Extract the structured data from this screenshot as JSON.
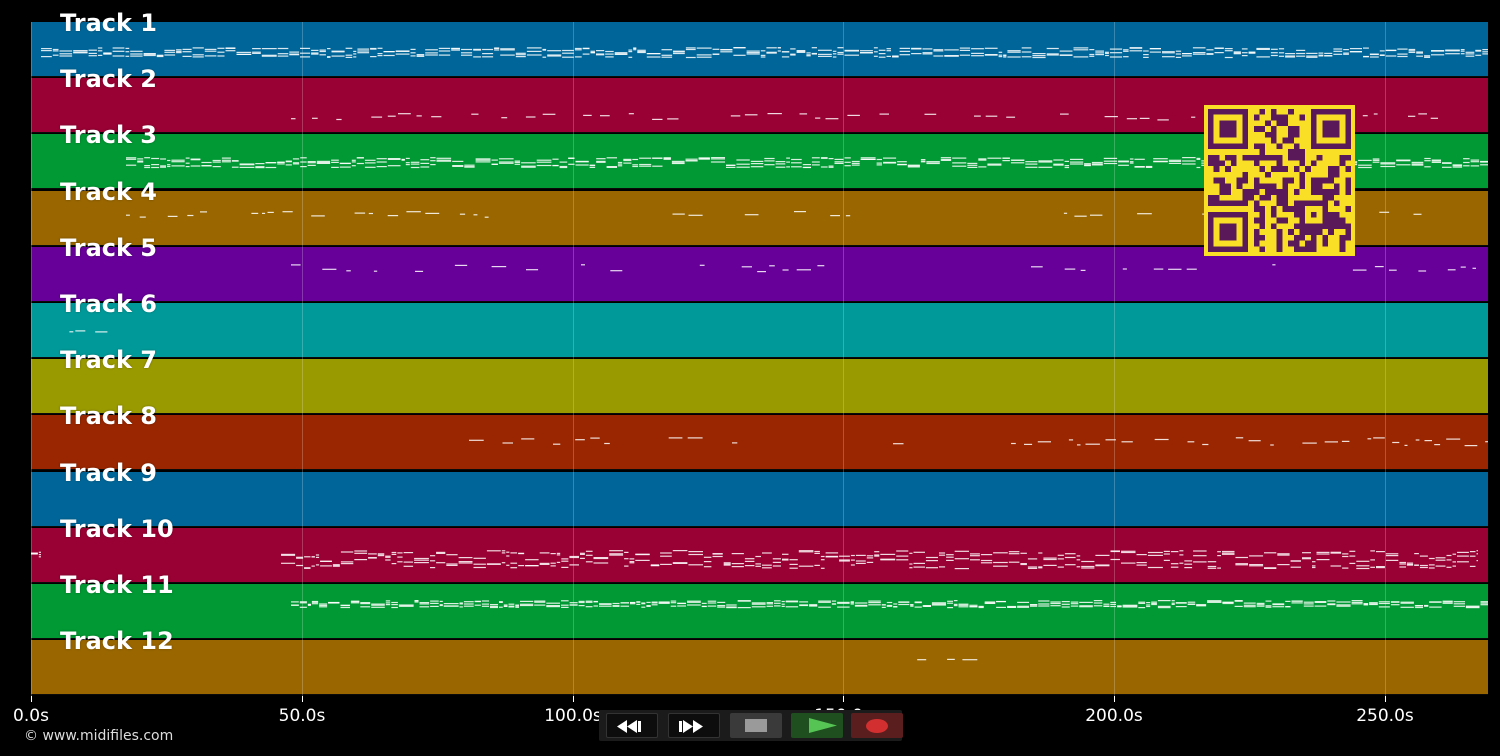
{
  "tracks": [
    {
      "label": "Track 1",
      "color": "#006699"
    },
    {
      "label": "Track 2",
      "color": "#990033"
    },
    {
      "label": "Track 3",
      "color": "#009933"
    },
    {
      "label": "Track 4",
      "color": "#996600"
    },
    {
      "label": "Track 5",
      "color": "#660099"
    },
    {
      "label": "Track 6",
      "color": "#009999"
    },
    {
      "label": "Track 7",
      "color": "#999900"
    },
    {
      "label": "Track 8",
      "color": "#992600"
    },
    {
      "label": "Track 9",
      "color": "#006699"
    },
    {
      "label": "Track 10",
      "color": "#990033"
    },
    {
      "label": "Track 11",
      "color": "#009933"
    },
    {
      "label": "Track 12",
      "color": "#996600"
    }
  ],
  "timeline": {
    "ticks": [
      "0.0s",
      "50.0s",
      "100.0s",
      "150.0s",
      "200.0s",
      "250.0s"
    ]
  },
  "transport": {
    "buttons": [
      {
        "name": "rewind-icon"
      },
      {
        "name": "fast-forward-icon"
      },
      {
        "name": "stop-icon"
      },
      {
        "name": "play-icon",
        "color": "#2e8b2e"
      },
      {
        "name": "record-icon",
        "color": "#d23030"
      }
    ]
  },
  "footer": {
    "copyright": "© www.midifiles.com"
  },
  "qr_code": {
    "colors": {
      "background": "#f9e026",
      "modules": "#5a1a5a"
    }
  }
}
